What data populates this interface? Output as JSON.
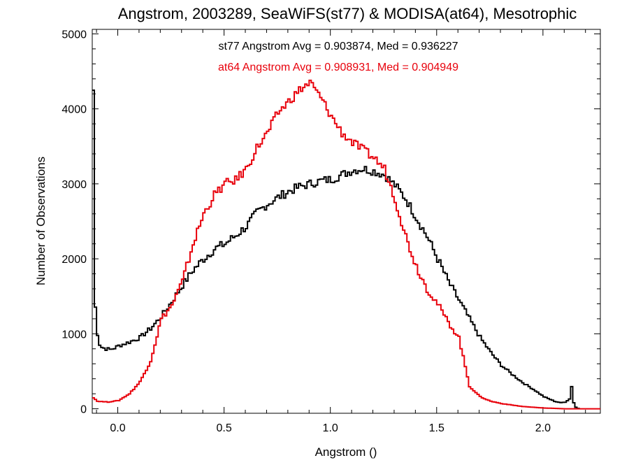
{
  "chart_data": {
    "type": "line",
    "title": "Angstrom, 2003289, SeaWiFS(st77) & MODISA(at64), Mesotrophic",
    "xlabel": "Angstrom ()",
    "ylabel": "Number of Observations",
    "xlim": [
      -0.12,
      2.27
    ],
    "ylim": [
      -60,
      5060
    ],
    "xticks": [
      0.0,
      0.5,
      1.0,
      1.5,
      2.0
    ],
    "xtick_labels": [
      "0.0",
      "0.5",
      "1.0",
      "1.5",
      "2.0"
    ],
    "yticks": [
      0,
      1000,
      2000,
      3000,
      4000,
      5000
    ],
    "ytick_labels": [
      "0",
      "1000",
      "2000",
      "3000",
      "4000",
      "5000"
    ],
    "annotations": [
      {
        "text": "st77 Angstrom Avg = 0.903874, Med = 0.936227",
        "color": "#000000"
      },
      {
        "text": "at64 Angstrom Avg = 0.908931, Med = 0.904949",
        "color": "#e8000b"
      }
    ],
    "series": [
      {
        "color": "#000000",
        "x": [
          -0.12,
          -0.11,
          -0.1,
          -0.09,
          -0.08,
          -0.06,
          -0.04,
          -0.02,
          0.0,
          0.05,
          0.1,
          0.15,
          0.2,
          0.25,
          0.3,
          0.35,
          0.4,
          0.45,
          0.5,
          0.55,
          0.6,
          0.65,
          0.7,
          0.75,
          0.8,
          0.85,
          0.9,
          0.95,
          1.0,
          1.05,
          1.1,
          1.15,
          1.2,
          1.25,
          1.3,
          1.35,
          1.4,
          1.45,
          1.5,
          1.55,
          1.6,
          1.65,
          1.7,
          1.75,
          1.8,
          1.85,
          1.9,
          1.95,
          2.0,
          2.05,
          2.08,
          2.1,
          2.12,
          2.13,
          2.14,
          2.15,
          2.16,
          2.17
        ],
        "y": [
          4250,
          1350,
          1000,
          860,
          820,
          800,
          790,
          810,
          840,
          890,
          950,
          1070,
          1230,
          1430,
          1650,
          1850,
          2000,
          2130,
          2200,
          2310,
          2430,
          2620,
          2730,
          2820,
          2900,
          2960,
          3000,
          3040,
          3060,
          3120,
          3180,
          3200,
          3170,
          3120,
          2980,
          2800,
          2550,
          2300,
          2000,
          1700,
          1450,
          1200,
          950,
          750,
          580,
          460,
          350,
          260,
          160,
          100,
          80,
          90,
          130,
          300,
          80,
          20,
          5,
          0
        ]
      },
      {
        "color": "#e8000b",
        "x": [
          -0.12,
          -0.1,
          -0.05,
          0.0,
          0.05,
          0.1,
          0.15,
          0.2,
          0.25,
          0.3,
          0.35,
          0.4,
          0.45,
          0.5,
          0.55,
          0.6,
          0.65,
          0.7,
          0.75,
          0.8,
          0.85,
          0.9,
          0.95,
          1.0,
          1.05,
          1.1,
          1.15,
          1.2,
          1.25,
          1.3,
          1.35,
          1.4,
          1.45,
          1.5,
          1.55,
          1.6,
          1.65,
          1.7,
          1.75,
          1.8,
          1.85,
          1.9,
          1.95,
          2.0,
          2.05,
          2.1,
          2.15,
          2.2,
          2.27
        ],
        "y": [
          150,
          100,
          90,
          110,
          200,
          360,
          640,
          1200,
          1380,
          1700,
          2200,
          2600,
          2850,
          3000,
          3050,
          3200,
          3480,
          3680,
          3950,
          4100,
          4250,
          4350,
          4150,
          3900,
          3680,
          3550,
          3450,
          3350,
          3200,
          2800,
          2300,
          1900,
          1600,
          1400,
          1150,
          950,
          300,
          160,
          100,
          70,
          50,
          30,
          20,
          10,
          5,
          0,
          0,
          0,
          0
        ]
      }
    ]
  }
}
